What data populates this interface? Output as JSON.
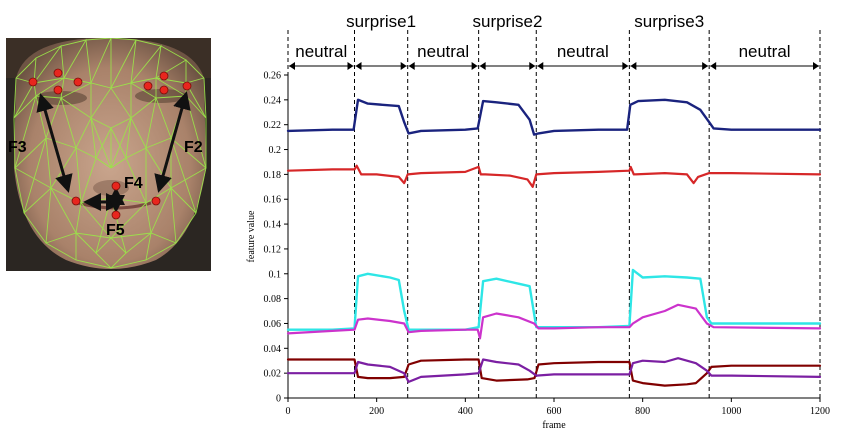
{
  "face_panel": {
    "feature_labels": [
      "F2",
      "F3",
      "F4",
      "F5"
    ]
  },
  "chart_data": {
    "type": "line",
    "xlabel": "frame",
    "ylabel": "feature value",
    "xlim": [
      0,
      1200
    ],
    "ylim": [
      0,
      0.26
    ],
    "x_ticks": [
      0,
      200,
      400,
      600,
      800,
      1000,
      1200
    ],
    "y_ticks": [
      0,
      0.02,
      0.04,
      0.06,
      0.08,
      0.1,
      0.12,
      0.14,
      0.16,
      0.18,
      0.2,
      0.22,
      0.24,
      0.26
    ],
    "y_tick_labels": [
      "0",
      "0.02",
      "0.04",
      "0.06",
      "0.08",
      "0.1",
      "0.12",
      "0.14",
      "0.16",
      "0.18",
      "0.2",
      "0.22",
      "0.24",
      "0.26"
    ],
    "phase_boundaries": [
      0,
      150,
      270,
      430,
      560,
      770,
      950,
      1200
    ],
    "phases": [
      {
        "label": "neutral",
        "start": 0,
        "end": 150,
        "row": "lower"
      },
      {
        "label": "surprise1",
        "start": 150,
        "end": 270,
        "row": "upper"
      },
      {
        "label": "neutral",
        "start": 270,
        "end": 430,
        "row": "lower"
      },
      {
        "label": "surprise2",
        "start": 430,
        "end": 560,
        "row": "upper"
      },
      {
        "label": "neutral",
        "start": 560,
        "end": 770,
        "row": "lower"
      },
      {
        "label": "surprise3",
        "start": 770,
        "end": 950,
        "row": "upper"
      },
      {
        "label": "neutral",
        "start": 950,
        "end": 1200,
        "row": "lower"
      }
    ],
    "series": [
      {
        "color": "#1a237e",
        "width": 2.4,
        "x": [
          0,
          100,
          148,
          158,
          180,
          250,
          262,
          272,
          300,
          400,
          428,
          440,
          470,
          520,
          545,
          555,
          565,
          600,
          700,
          765,
          772,
          790,
          850,
          900,
          930,
          950,
          960,
          1000,
          1100,
          1200
        ],
        "y": [
          0.215,
          0.216,
          0.216,
          0.24,
          0.237,
          0.235,
          0.222,
          0.213,
          0.215,
          0.216,
          0.217,
          0.239,
          0.238,
          0.236,
          0.224,
          0.212,
          0.213,
          0.215,
          0.216,
          0.216,
          0.236,
          0.239,
          0.24,
          0.238,
          0.232,
          0.222,
          0.217,
          0.216,
          0.216,
          0.216
        ]
      },
      {
        "color": "#d62728",
        "width": 2.2,
        "x": [
          0,
          100,
          150,
          155,
          165,
          200,
          250,
          262,
          270,
          300,
          400,
          430,
          435,
          445,
          500,
          540,
          552,
          560,
          600,
          700,
          770,
          773,
          780,
          850,
          900,
          915,
          925,
          950,
          1000,
          1200
        ],
        "y": [
          0.183,
          0.184,
          0.184,
          0.187,
          0.18,
          0.18,
          0.178,
          0.173,
          0.18,
          0.181,
          0.182,
          0.186,
          0.18,
          0.18,
          0.179,
          0.176,
          0.17,
          0.18,
          0.181,
          0.182,
          0.183,
          0.186,
          0.18,
          0.181,
          0.18,
          0.173,
          0.178,
          0.181,
          0.181,
          0.18
        ]
      },
      {
        "color": "#2ee6e6",
        "width": 2.4,
        "x": [
          0,
          100,
          150,
          158,
          180,
          230,
          250,
          262,
          272,
          300,
          400,
          430,
          440,
          470,
          520,
          545,
          560,
          600,
          700,
          770,
          778,
          800,
          850,
          900,
          930,
          945,
          955,
          1000,
          1200
        ],
        "y": [
          0.055,
          0.055,
          0.056,
          0.098,
          0.1,
          0.097,
          0.095,
          0.07,
          0.055,
          0.055,
          0.055,
          0.057,
          0.094,
          0.096,
          0.092,
          0.09,
          0.057,
          0.057,
          0.057,
          0.058,
          0.103,
          0.097,
          0.098,
          0.097,
          0.096,
          0.065,
          0.06,
          0.06,
          0.06
        ]
      },
      {
        "color": "#cc33cc",
        "width": 2.2,
        "x": [
          0,
          100,
          150,
          158,
          180,
          230,
          262,
          272,
          300,
          400,
          428,
          433,
          440,
          470,
          520,
          555,
          565,
          600,
          700,
          770,
          778,
          800,
          850,
          880,
          920,
          945,
          960,
          1200
        ],
        "y": [
          0.052,
          0.054,
          0.055,
          0.063,
          0.064,
          0.062,
          0.06,
          0.053,
          0.054,
          0.055,
          0.055,
          0.048,
          0.065,
          0.068,
          0.065,
          0.06,
          0.056,
          0.056,
          0.057,
          0.057,
          0.06,
          0.065,
          0.07,
          0.075,
          0.072,
          0.06,
          0.057,
          0.056
        ]
      },
      {
        "color": "#800000",
        "width": 2.2,
        "x": [
          0,
          100,
          150,
          158,
          180,
          230,
          262,
          272,
          300,
          400,
          430,
          437,
          470,
          540,
          556,
          565,
          600,
          700,
          770,
          778,
          800,
          850,
          900,
          920,
          945,
          955,
          1000,
          1200
        ],
        "y": [
          0.031,
          0.031,
          0.031,
          0.017,
          0.016,
          0.016,
          0.017,
          0.027,
          0.03,
          0.031,
          0.031,
          0.016,
          0.014,
          0.015,
          0.016,
          0.027,
          0.028,
          0.029,
          0.029,
          0.014,
          0.012,
          0.01,
          0.011,
          0.012,
          0.02,
          0.025,
          0.026,
          0.026
        ]
      },
      {
        "color": "#7b1fa2",
        "width": 2.2,
        "x": [
          0,
          100,
          150,
          158,
          180,
          230,
          262,
          272,
          300,
          400,
          430,
          440,
          470,
          520,
          545,
          560,
          600,
          700,
          770,
          778,
          800,
          850,
          880,
          920,
          945,
          955,
          1000,
          1200
        ],
        "y": [
          0.02,
          0.02,
          0.02,
          0.029,
          0.027,
          0.025,
          0.02,
          0.013,
          0.017,
          0.019,
          0.02,
          0.031,
          0.029,
          0.027,
          0.022,
          0.018,
          0.019,
          0.019,
          0.019,
          0.028,
          0.03,
          0.029,
          0.032,
          0.028,
          0.022,
          0.018,
          0.018,
          0.017
        ]
      }
    ]
  }
}
